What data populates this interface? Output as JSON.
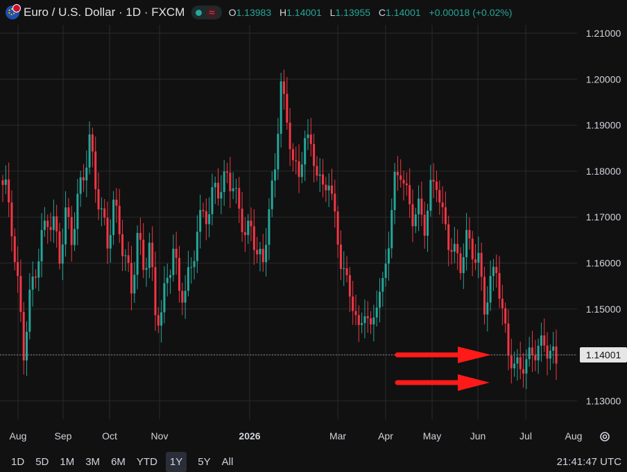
{
  "header": {
    "title": "Euro / U.S. Dollar · 1D · FXCM",
    "ohlc": [
      {
        "key": "O",
        "value": "1.13983"
      },
      {
        "key": "H",
        "value": "1.14001"
      },
      {
        "key": "L",
        "value": "1.13955"
      },
      {
        "key": "C",
        "value": "1.14001"
      }
    ],
    "change": "+0.00018 (+0.02%)"
  },
  "timeframes": [
    "1D",
    "5D",
    "1M",
    "3M",
    "6M",
    "YTD",
    "1Y",
    "5Y",
    "All"
  ],
  "active_timeframe": "1Y",
  "clock": "21:41:47 UTC",
  "colors": {
    "up": "#26a69a",
    "down": "#f23645",
    "background": "#111111",
    "grid": "#2a2a2a",
    "price_label": "#e6e6e6",
    "arrow": "#ff1a1a"
  },
  "chart_data": {
    "type": "candlestick",
    "y_ticks": [
      "1.21000",
      "1.20000",
      "1.19000",
      "1.18000",
      "1.17000",
      "1.16000",
      "1.15000",
      "1.14000",
      "1.13000"
    ],
    "ylim": [
      1.1235,
      1.215
    ],
    "x_ticks": [
      "Aug",
      "Sep",
      "Oct",
      "Nov",
      "2026",
      "Mar",
      "Apr",
      "May",
      "Jun",
      "Jul",
      "Aug"
    ],
    "last_price": "1.14001",
    "close_series": [
      1.176,
      1.168,
      1.155,
      1.141,
      1.152,
      1.159,
      1.165,
      1.17,
      1.168,
      1.162,
      1.17,
      1.166,
      1.173,
      1.18,
      1.186,
      1.178,
      1.17,
      1.165,
      1.172,
      1.168,
      1.16,
      1.155,
      1.165,
      1.16,
      1.163,
      1.15,
      1.148,
      1.158,
      1.162,
      1.155,
      1.153,
      1.16,
      1.166,
      1.172,
      1.17,
      1.178,
      1.175,
      1.18,
      1.176,
      1.172,
      1.166,
      1.168,
      1.162,
      1.16,
      1.172,
      1.18,
      1.2,
      1.19,
      1.183,
      1.178,
      1.188,
      1.185,
      1.18,
      1.176,
      1.178,
      1.17,
      1.16,
      1.156,
      1.151,
      1.145,
      1.15,
      1.145,
      1.152,
      1.155,
      1.165,
      1.178,
      1.18,
      1.175,
      1.17,
      1.172,
      1.168,
      1.176,
      1.178,
      1.17,
      1.165,
      1.162,
      1.16,
      1.165,
      1.163,
      1.16,
      1.151,
      1.155,
      1.16,
      1.148,
      1.142,
      1.136,
      1.139,
      1.137,
      1.142,
      1.14,
      1.144,
      1.139,
      1.14
    ],
    "annotations": [
      {
        "type": "arrow",
        "direction": "right",
        "description": "red arrow pointing at 1.140 level"
      },
      {
        "type": "arrow",
        "direction": "right",
        "description": "red arrow pointing at 1.135 level"
      }
    ]
  }
}
